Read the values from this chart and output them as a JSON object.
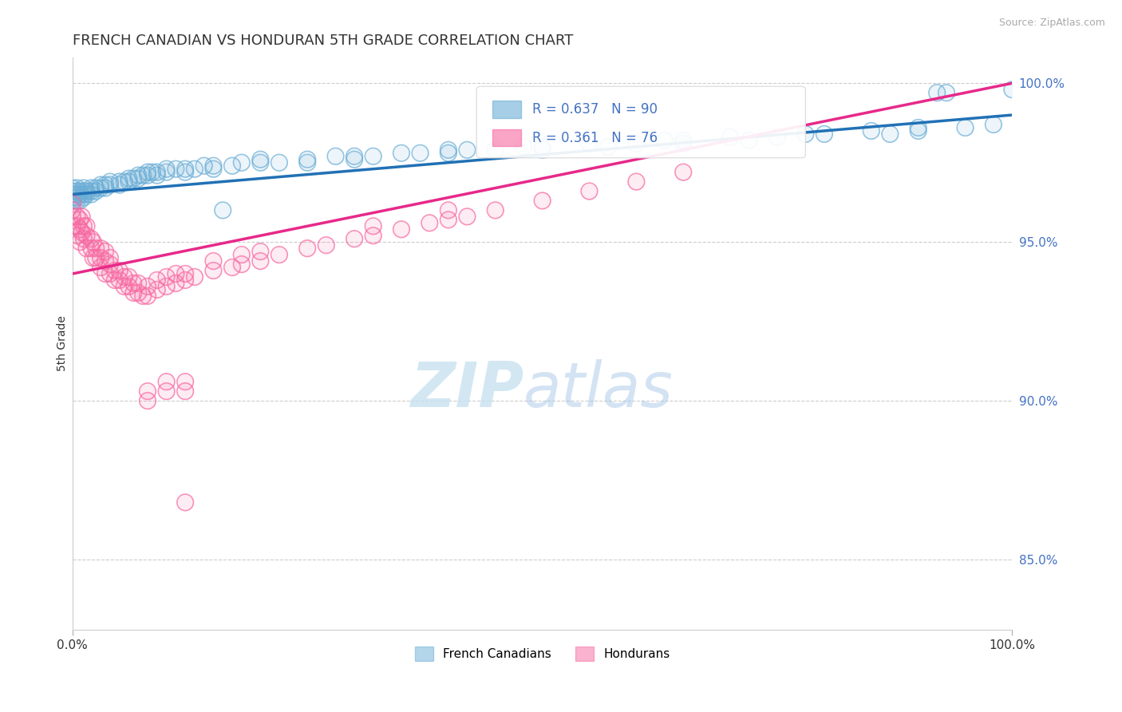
{
  "title": "FRENCH CANADIAN VS HONDURAN 5TH GRADE CORRELATION CHART",
  "source": "Source: ZipAtlas.com",
  "ylabel": "5th Grade",
  "xlim": [
    0.0,
    1.0
  ],
  "ylim": [
    0.828,
    1.008
  ],
  "yticks": [
    0.85,
    0.9,
    0.95,
    1.0
  ],
  "ytick_labels": [
    "85.0%",
    "90.0%",
    "95.0%",
    "100.0%"
  ],
  "xtick_labels": [
    "0.0%",
    "100.0%"
  ],
  "french_canadian_color": "#6baed6",
  "honduran_color": "#f768a1",
  "french_canadian_R": 0.637,
  "french_canadian_N": 90,
  "honduran_R": 0.361,
  "honduran_N": 76,
  "legend_labels": [
    "French Canadians",
    "Hondurans"
  ],
  "watermark_zip": "ZIP",
  "watermark_atlas": "atlas",
  "blue_line_x": [
    0.0,
    1.0
  ],
  "blue_line_y": [
    0.965,
    0.99
  ],
  "pink_line_x": [
    0.0,
    1.0
  ],
  "pink_line_y": [
    0.94,
    1.0
  ],
  "french_canadians": [
    [
      0.0,
      0.965
    ],
    [
      0.0,
      0.964
    ],
    [
      0.0,
      0.966
    ],
    [
      0.0,
      0.963
    ],
    [
      0.0,
      0.967
    ],
    [
      0.005,
      0.964
    ],
    [
      0.005,
      0.966
    ],
    [
      0.005,
      0.963
    ],
    [
      0.005,
      0.965
    ],
    [
      0.005,
      0.967
    ],
    [
      0.008,
      0.965
    ],
    [
      0.008,
      0.963
    ],
    [
      0.008,
      0.966
    ],
    [
      0.012,
      0.965
    ],
    [
      0.012,
      0.964
    ],
    [
      0.012,
      0.966
    ],
    [
      0.012,
      0.967
    ],
    [
      0.015,
      0.966
    ],
    [
      0.015,
      0.965
    ],
    [
      0.02,
      0.966
    ],
    [
      0.02,
      0.967
    ],
    [
      0.02,
      0.965
    ],
    [
      0.025,
      0.967
    ],
    [
      0.025,
      0.966
    ],
    [
      0.03,
      0.967
    ],
    [
      0.03,
      0.968
    ],
    [
      0.035,
      0.968
    ],
    [
      0.035,
      0.967
    ],
    [
      0.04,
      0.968
    ],
    [
      0.04,
      0.969
    ],
    [
      0.05,
      0.969
    ],
    [
      0.05,
      0.968
    ],
    [
      0.055,
      0.969
    ],
    [
      0.06,
      0.97
    ],
    [
      0.06,
      0.969
    ],
    [
      0.065,
      0.97
    ],
    [
      0.07,
      0.971
    ],
    [
      0.07,
      0.97
    ],
    [
      0.075,
      0.971
    ],
    [
      0.08,
      0.971
    ],
    [
      0.08,
      0.972
    ],
    [
      0.085,
      0.972
    ],
    [
      0.09,
      0.972
    ],
    [
      0.09,
      0.971
    ],
    [
      0.1,
      0.972
    ],
    [
      0.1,
      0.973
    ],
    [
      0.11,
      0.973
    ],
    [
      0.12,
      0.973
    ],
    [
      0.12,
      0.972
    ],
    [
      0.13,
      0.973
    ],
    [
      0.14,
      0.974
    ],
    [
      0.15,
      0.974
    ],
    [
      0.15,
      0.973
    ],
    [
      0.16,
      0.96
    ],
    [
      0.17,
      0.974
    ],
    [
      0.18,
      0.975
    ],
    [
      0.2,
      0.975
    ],
    [
      0.2,
      0.976
    ],
    [
      0.22,
      0.975
    ],
    [
      0.25,
      0.976
    ],
    [
      0.25,
      0.975
    ],
    [
      0.28,
      0.977
    ],
    [
      0.3,
      0.977
    ],
    [
      0.3,
      0.976
    ],
    [
      0.32,
      0.977
    ],
    [
      0.35,
      0.978
    ],
    [
      0.37,
      0.978
    ],
    [
      0.4,
      0.979
    ],
    [
      0.4,
      0.978
    ],
    [
      0.42,
      0.979
    ],
    [
      0.45,
      0.979
    ],
    [
      0.48,
      0.98
    ],
    [
      0.5,
      0.98
    ],
    [
      0.5,
      0.979
    ],
    [
      0.55,
      0.981
    ],
    [
      0.57,
      0.98
    ],
    [
      0.6,
      0.981
    ],
    [
      0.63,
      0.982
    ],
    [
      0.65,
      0.982
    ],
    [
      0.65,
      0.981
    ],
    [
      0.7,
      0.983
    ],
    [
      0.72,
      0.982
    ],
    [
      0.75,
      0.983
    ],
    [
      0.78,
      0.984
    ],
    [
      0.8,
      0.984
    ],
    [
      0.85,
      0.985
    ],
    [
      0.87,
      0.984
    ],
    [
      0.9,
      0.985
    ],
    [
      0.9,
      0.986
    ],
    [
      0.92,
      0.997
    ],
    [
      0.93,
      0.997
    ],
    [
      0.95,
      0.986
    ],
    [
      0.98,
      0.987
    ],
    [
      1.0,
      0.998
    ]
  ],
  "hondurans": [
    [
      0.0,
      0.96
    ],
    [
      0.0,
      0.955
    ],
    [
      0.0,
      0.962
    ],
    [
      0.0,
      0.958
    ],
    [
      0.005,
      0.955
    ],
    [
      0.005,
      0.958
    ],
    [
      0.005,
      0.952
    ],
    [
      0.008,
      0.95
    ],
    [
      0.008,
      0.954
    ],
    [
      0.008,
      0.957
    ],
    [
      0.01,
      0.953
    ],
    [
      0.01,
      0.958
    ],
    [
      0.012,
      0.951
    ],
    [
      0.012,
      0.955
    ],
    [
      0.015,
      0.948
    ],
    [
      0.015,
      0.952
    ],
    [
      0.015,
      0.955
    ],
    [
      0.02,
      0.948
    ],
    [
      0.02,
      0.951
    ],
    [
      0.022,
      0.945
    ],
    [
      0.022,
      0.95
    ],
    [
      0.025,
      0.945
    ],
    [
      0.025,
      0.948
    ],
    [
      0.03,
      0.945
    ],
    [
      0.03,
      0.948
    ],
    [
      0.03,
      0.942
    ],
    [
      0.035,
      0.94
    ],
    [
      0.035,
      0.944
    ],
    [
      0.035,
      0.947
    ],
    [
      0.04,
      0.94
    ],
    [
      0.04,
      0.943
    ],
    [
      0.04,
      0.945
    ],
    [
      0.045,
      0.938
    ],
    [
      0.045,
      0.941
    ],
    [
      0.05,
      0.938
    ],
    [
      0.05,
      0.941
    ],
    [
      0.055,
      0.936
    ],
    [
      0.055,
      0.939
    ],
    [
      0.06,
      0.936
    ],
    [
      0.06,
      0.939
    ],
    [
      0.065,
      0.934
    ],
    [
      0.065,
      0.937
    ],
    [
      0.07,
      0.934
    ],
    [
      0.07,
      0.937
    ],
    [
      0.075,
      0.933
    ],
    [
      0.08,
      0.933
    ],
    [
      0.08,
      0.936
    ],
    [
      0.09,
      0.935
    ],
    [
      0.09,
      0.938
    ],
    [
      0.1,
      0.936
    ],
    [
      0.1,
      0.939
    ],
    [
      0.11,
      0.937
    ],
    [
      0.11,
      0.94
    ],
    [
      0.12,
      0.938
    ],
    [
      0.12,
      0.94
    ],
    [
      0.13,
      0.939
    ],
    [
      0.15,
      0.941
    ],
    [
      0.15,
      0.944
    ],
    [
      0.17,
      0.942
    ],
    [
      0.18,
      0.943
    ],
    [
      0.18,
      0.946
    ],
    [
      0.2,
      0.944
    ],
    [
      0.2,
      0.947
    ],
    [
      0.22,
      0.946
    ],
    [
      0.25,
      0.948
    ],
    [
      0.27,
      0.949
    ],
    [
      0.3,
      0.951
    ],
    [
      0.32,
      0.952
    ],
    [
      0.32,
      0.955
    ],
    [
      0.35,
      0.954
    ],
    [
      0.38,
      0.956
    ],
    [
      0.4,
      0.957
    ],
    [
      0.4,
      0.96
    ],
    [
      0.42,
      0.958
    ],
    [
      0.45,
      0.96
    ],
    [
      0.5,
      0.963
    ],
    [
      0.55,
      0.966
    ],
    [
      0.6,
      0.969
    ],
    [
      0.65,
      0.972
    ],
    [
      0.12,
      0.868
    ],
    [
      0.08,
      0.9
    ],
    [
      0.08,
      0.903
    ],
    [
      0.1,
      0.903
    ],
    [
      0.1,
      0.906
    ],
    [
      0.12,
      0.906
    ],
    [
      0.12,
      0.903
    ]
  ]
}
